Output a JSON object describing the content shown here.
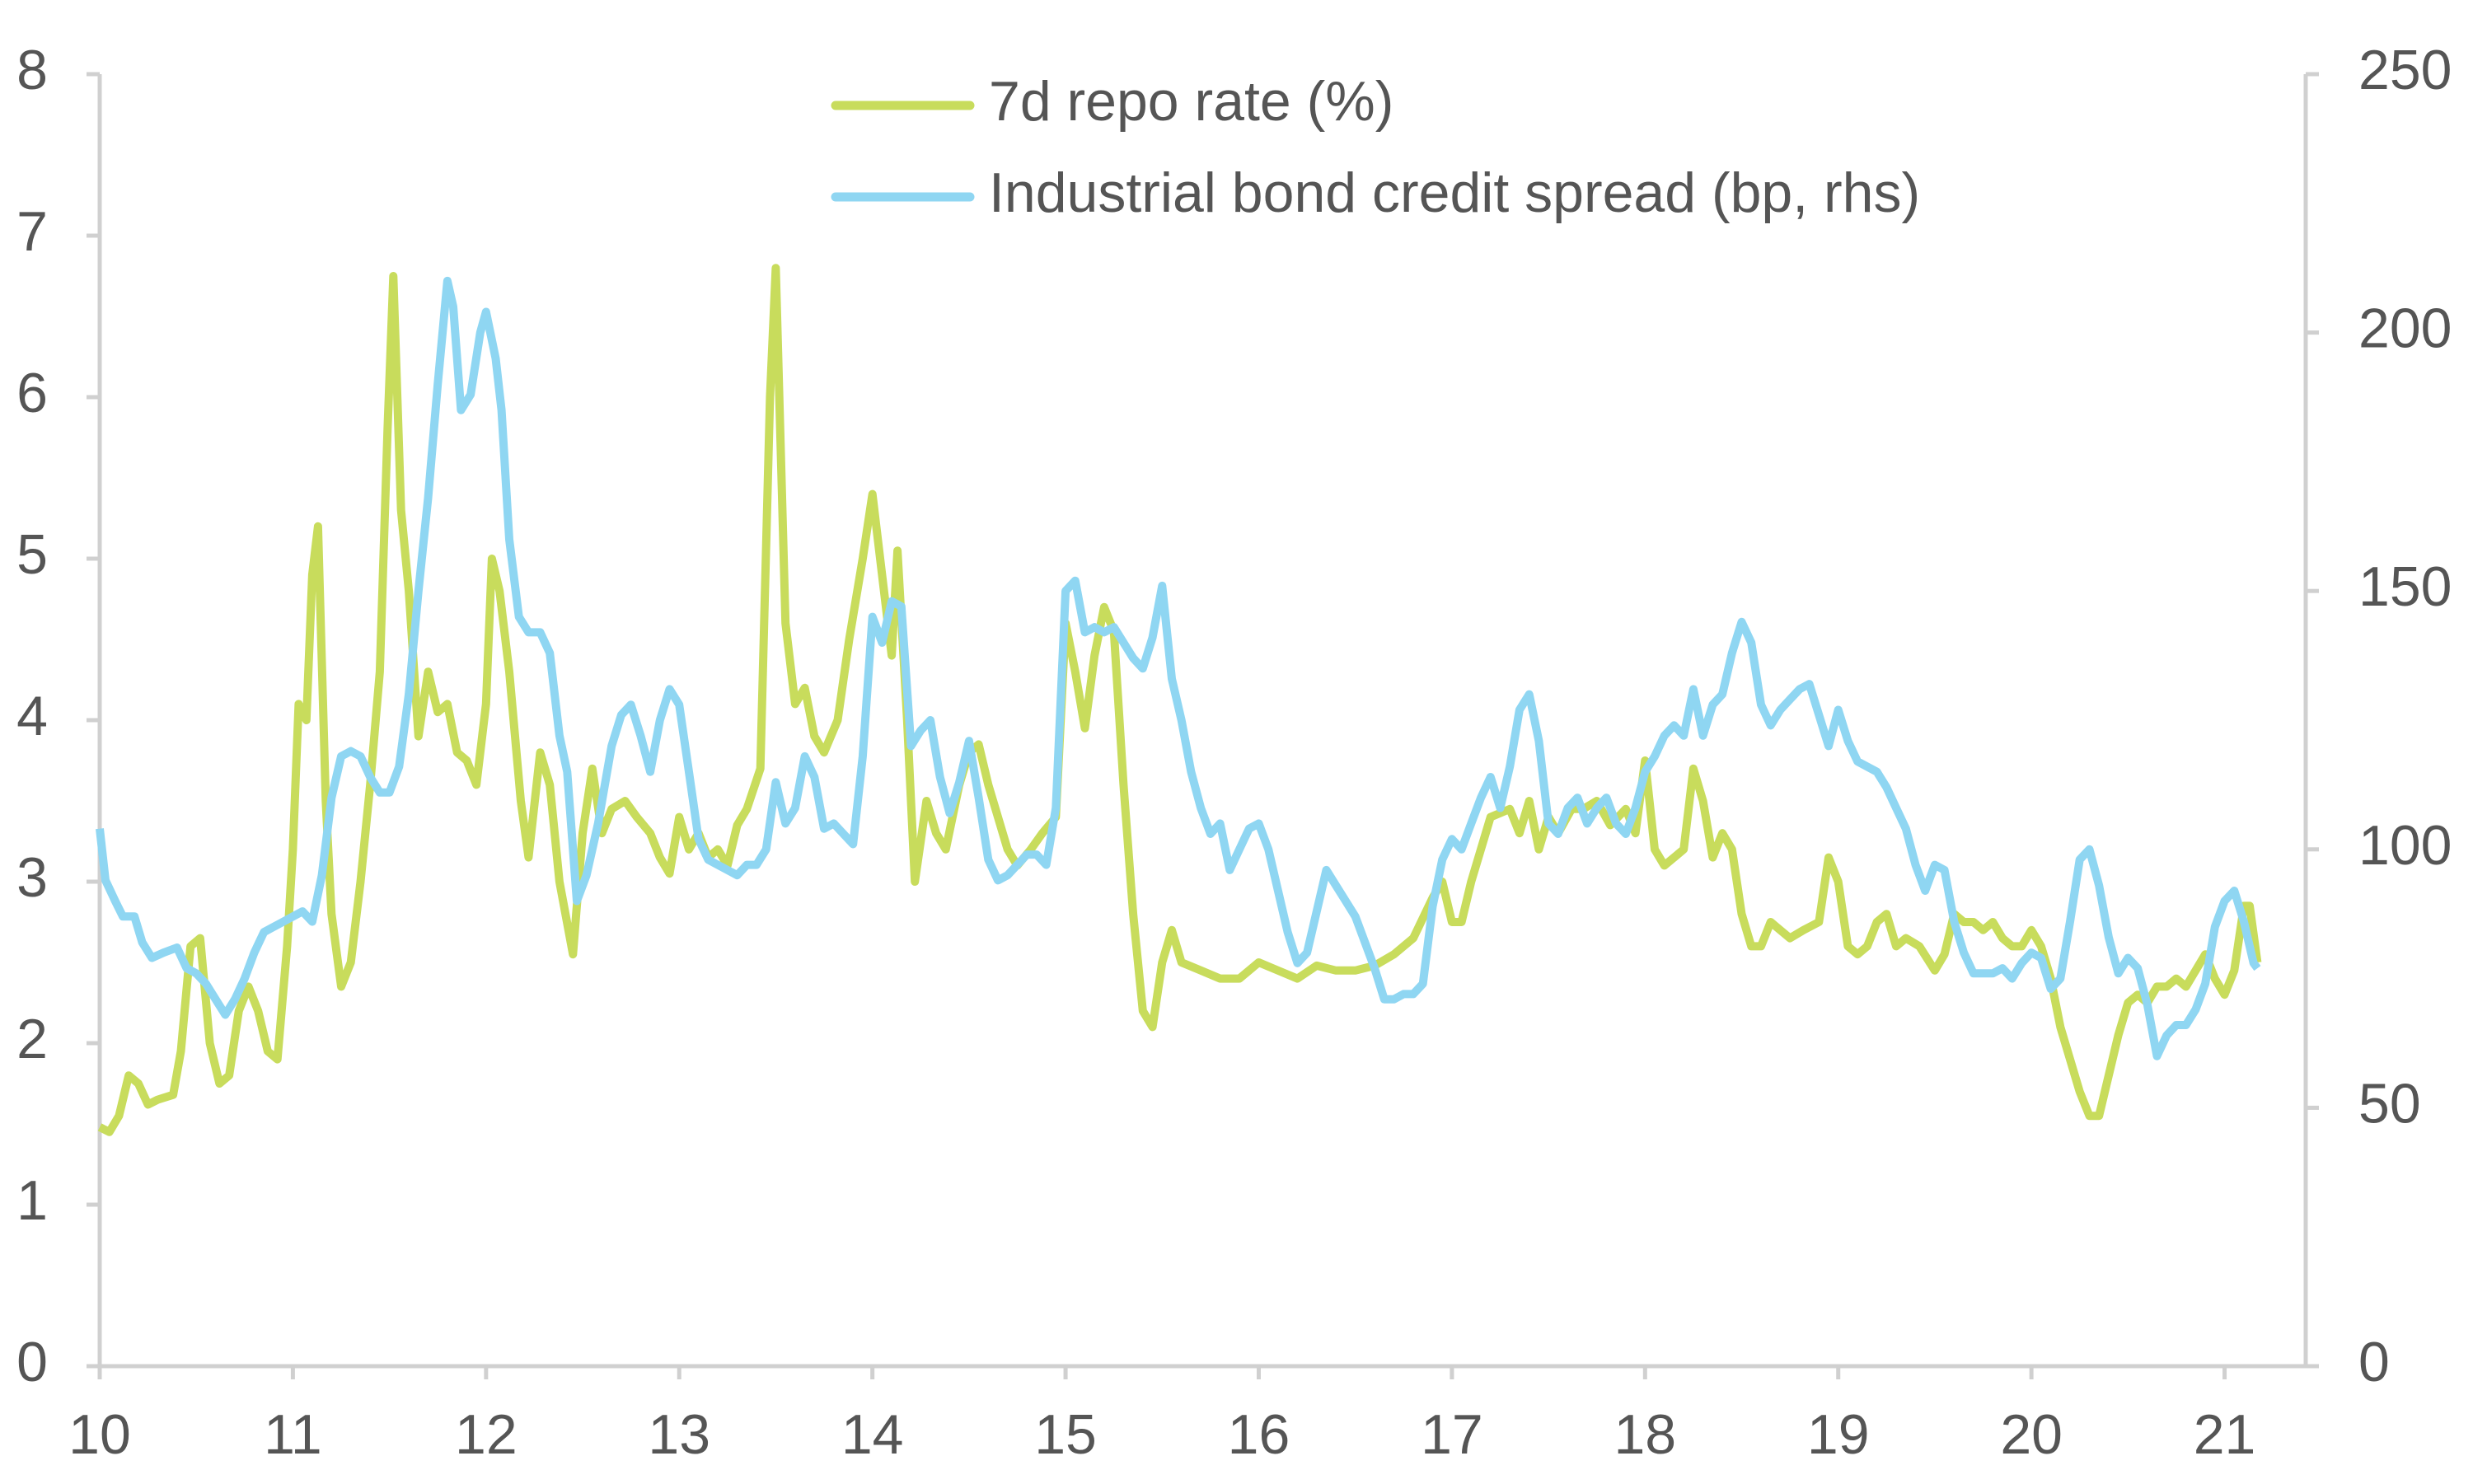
{
  "chart_data": {
    "type": "line",
    "xlim": [
      10,
      21.42
    ],
    "xticks": [
      10,
      11,
      12,
      13,
      14,
      15,
      16,
      17,
      18,
      19,
      20,
      21
    ],
    "ylim": [
      0,
      8
    ],
    "yticks": [
      0,
      1,
      2,
      3,
      4,
      5,
      6,
      7,
      8
    ],
    "y2lim": [
      0,
      250
    ],
    "y2ticks": [
      0,
      50,
      100,
      150,
      200,
      250
    ],
    "series": [
      {
        "name": "7d repo rate (%)",
        "color": "#c8dc5c",
        "x": [
          10.0,
          10.05,
          10.1,
          10.15,
          10.2,
          10.25,
          10.3,
          10.38,
          10.42,
          10.47,
          10.52,
          10.57,
          10.62,
          10.67,
          10.72,
          10.77,
          10.82,
          10.87,
          10.92,
          10.97,
          11.0,
          11.03,
          11.07,
          11.1,
          11.13,
          11.17,
          11.2,
          11.25,
          11.3,
          11.35,
          11.4,
          11.45,
          11.49,
          11.52,
          11.56,
          11.6,
          11.65,
          11.7,
          11.75,
          11.8,
          11.85,
          11.9,
          11.95,
          12.0,
          12.03,
          12.07,
          12.12,
          12.18,
          12.22,
          12.28,
          12.33,
          12.38,
          12.45,
          12.5,
          12.55,
          12.6,
          12.65,
          12.72,
          12.78,
          12.85,
          12.9,
          12.95,
          13.0,
          13.05,
          13.1,
          13.15,
          13.2,
          13.25,
          13.3,
          13.35,
          13.42,
          13.47,
          13.5,
          13.55,
          13.6,
          13.65,
          13.7,
          13.75,
          13.82,
          13.88,
          13.95,
          14.0,
          14.05,
          14.1,
          14.13,
          14.18,
          14.22,
          14.28,
          14.33,
          14.38,
          14.45,
          14.5,
          14.55,
          14.6,
          14.65,
          14.7,
          14.75,
          14.82,
          14.88,
          14.95,
          15.0,
          15.05,
          15.1,
          15.15,
          15.2,
          15.25,
          15.3,
          15.35,
          15.4,
          15.45,
          15.5,
          15.55,
          15.6,
          15.7,
          15.8,
          15.9,
          16.0,
          16.1,
          16.2,
          16.3,
          16.4,
          16.5,
          16.6,
          16.7,
          16.8,
          16.9,
          16.95,
          17.0,
          17.05,
          17.1,
          17.2,
          17.3,
          17.35,
          17.4,
          17.45,
          17.5,
          17.55,
          17.62,
          17.68,
          17.75,
          17.82,
          17.9,
          17.95,
          18.0,
          18.05,
          18.1,
          18.15,
          18.2,
          18.25,
          18.3,
          18.35,
          18.4,
          18.45,
          18.5,
          18.55,
          18.6,
          18.65,
          18.7,
          18.75,
          18.82,
          18.9,
          18.95,
          19.0,
          19.05,
          19.1,
          19.15,
          19.2,
          19.25,
          19.3,
          19.35,
          19.42,
          19.5,
          19.55,
          19.6,
          19.65,
          19.7,
          19.75,
          19.8,
          19.85,
          19.9,
          19.95,
          20.0,
          20.05,
          20.1,
          20.15,
          20.2,
          20.25,
          20.3,
          20.35,
          20.4,
          20.45,
          20.5,
          20.55,
          20.6,
          20.65,
          20.7,
          20.75,
          20.8,
          20.85,
          20.9,
          20.95,
          21.0,
          21.05,
          21.1,
          21.13,
          21.17
        ],
        "values": [
          1.48,
          1.45,
          1.55,
          1.8,
          1.75,
          1.62,
          1.65,
          1.68,
          1.95,
          2.6,
          2.65,
          2.0,
          1.75,
          1.8,
          2.2,
          2.35,
          2.2,
          1.95,
          1.9,
          2.6,
          3.2,
          4.1,
          4.0,
          4.9,
          5.2,
          3.5,
          2.8,
          2.35,
          2.5,
          3.0,
          3.6,
          4.3,
          5.8,
          6.75,
          5.3,
          4.8,
          3.9,
          4.3,
          4.05,
          4.1,
          3.8,
          3.75,
          3.6,
          4.1,
          5.0,
          4.8,
          4.3,
          3.5,
          3.15,
          3.8,
          3.6,
          3.0,
          2.55,
          3.3,
          3.7,
          3.3,
          3.45,
          3.5,
          3.4,
          3.3,
          3.15,
          3.05,
          3.4,
          3.2,
          3.3,
          3.15,
          3.2,
          3.1,
          3.35,
          3.45,
          3.7,
          6.0,
          6.8,
          4.6,
          4.1,
          4.2,
          3.9,
          3.8,
          4.0,
          4.5,
          5.0,
          5.4,
          4.9,
          4.4,
          5.05,
          4.0,
          3.0,
          3.5,
          3.3,
          3.2,
          3.6,
          3.8,
          3.85,
          3.6,
          3.4,
          3.2,
          3.1,
          3.2,
          3.3,
          3.4,
          4.6,
          4.3,
          3.95,
          4.4,
          4.7,
          4.55,
          3.6,
          2.8,
          2.2,
          2.1,
          2.5,
          2.7,
          2.5,
          2.45,
          2.4,
          2.4,
          2.5,
          2.45,
          2.4,
          2.48,
          2.45,
          2.45,
          2.48,
          2.55,
          2.65,
          2.9,
          3.0,
          2.75,
          2.75,
          3.0,
          3.4,
          3.45,
          3.3,
          3.5,
          3.2,
          3.4,
          3.3,
          3.45,
          3.45,
          3.5,
          3.35,
          3.45,
          3.3,
          3.75,
          3.2,
          3.1,
          3.15,
          3.2,
          3.7,
          3.5,
          3.15,
          3.3,
          3.2,
          2.8,
          2.6,
          2.6,
          2.75,
          2.7,
          2.65,
          2.7,
          2.75,
          3.15,
          3.0,
          2.6,
          2.55,
          2.6,
          2.75,
          2.8,
          2.6,
          2.65,
          2.6,
          2.45,
          2.55,
          2.8,
          2.75,
          2.75,
          2.7,
          2.75,
          2.65,
          2.6,
          2.6,
          2.7,
          2.6,
          2.4,
          2.1,
          1.9,
          1.7,
          1.55,
          1.55,
          1.8,
          2.05,
          2.25,
          2.3,
          2.25,
          2.35,
          2.35,
          2.4,
          2.35,
          2.45,
          2.55,
          2.4,
          2.3,
          2.45,
          2.85,
          2.85,
          2.5
        ]
      },
      {
        "name": "Industrial bond credit spread (bp, rhs)",
        "color": "#8fd6f2",
        "axis": "y2",
        "x": [
          10.0,
          10.03,
          10.08,
          10.12,
          10.18,
          10.22,
          10.27,
          10.33,
          10.4,
          10.45,
          10.5,
          10.55,
          10.6,
          10.65,
          10.7,
          10.75,
          10.8,
          10.85,
          10.9,
          10.95,
          11.0,
          11.05,
          11.1,
          11.15,
          11.2,
          11.25,
          11.3,
          11.35,
          11.4,
          11.45,
          11.5,
          11.55,
          11.6,
          11.65,
          11.7,
          11.75,
          11.8,
          11.83,
          11.87,
          11.92,
          11.97,
          12.0,
          12.05,
          12.08,
          12.12,
          12.17,
          12.22,
          12.28,
          12.33,
          12.38,
          12.42,
          12.47,
          12.52,
          12.58,
          12.65,
          12.7,
          12.75,
          12.8,
          12.85,
          12.9,
          12.95,
          13.0,
          13.05,
          13.1,
          13.15,
          13.2,
          13.25,
          13.3,
          13.35,
          13.4,
          13.45,
          13.5,
          13.55,
          13.6,
          13.65,
          13.7,
          13.75,
          13.8,
          13.85,
          13.9,
          13.95,
          14.0,
          14.05,
          14.1,
          14.15,
          14.2,
          14.25,
          14.3,
          14.35,
          14.4,
          14.45,
          14.5,
          14.55,
          14.6,
          14.65,
          14.7,
          14.75,
          14.8,
          14.85,
          14.9,
          14.95,
          15.0,
          15.05,
          15.1,
          15.15,
          15.2,
          15.25,
          15.3,
          15.35,
          15.4,
          15.45,
          15.5,
          15.55,
          15.6,
          15.65,
          15.7,
          15.75,
          15.8,
          15.85,
          15.9,
          15.95,
          16.0,
          16.05,
          16.1,
          16.15,
          16.2,
          16.25,
          16.3,
          16.35,
          16.4,
          16.45,
          16.5,
          16.55,
          16.6,
          16.65,
          16.7,
          16.75,
          16.8,
          16.85,
          16.9,
          16.95,
          17.0,
          17.05,
          17.1,
          17.15,
          17.2,
          17.25,
          17.3,
          17.35,
          17.4,
          17.45,
          17.5,
          17.55,
          17.6,
          17.65,
          17.7,
          17.75,
          17.8,
          17.85,
          17.9,
          17.95,
          18.0,
          18.05,
          18.1,
          18.15,
          18.2,
          18.25,
          18.3,
          18.35,
          18.4,
          18.45,
          18.5,
          18.55,
          18.6,
          18.65,
          18.7,
          18.75,
          18.8,
          18.85,
          18.9,
          18.95,
          19.0,
          19.05,
          19.1,
          19.15,
          19.2,
          19.25,
          19.3,
          19.35,
          19.4,
          19.45,
          19.5,
          19.55,
          19.6,
          19.65,
          19.7,
          19.75,
          19.8,
          19.85,
          19.9,
          19.95,
          20.0,
          20.05,
          20.1,
          20.15,
          20.2,
          20.25,
          20.3,
          20.35,
          20.4,
          20.45,
          20.5,
          20.55,
          20.6,
          20.65,
          20.7,
          20.75,
          20.8,
          20.85,
          20.9,
          20.95,
          21.0,
          21.05,
          21.1,
          21.15,
          21.17
        ],
        "values": [
          104,
          94,
          90,
          87,
          87,
          82,
          79,
          80,
          81,
          77,
          76,
          74,
          71,
          68,
          71,
          75,
          80,
          84,
          85,
          86,
          87,
          88,
          86,
          95,
          110,
          118,
          119,
          118,
          114,
          111,
          111,
          116,
          130,
          150,
          168,
          190,
          210,
          205,
          185,
          188,
          200,
          204,
          195,
          185,
          160,
          145,
          142,
          142,
          138,
          122,
          115,
          90,
          95,
          105,
          120,
          126,
          128,
          122,
          115,
          125,
          131,
          128,
          115,
          102,
          98,
          97,
          96,
          95,
          97,
          97,
          100,
          113,
          105,
          108,
          118,
          114,
          104,
          105,
          103,
          101,
          118,
          145,
          140,
          148,
          147,
          120,
          123,
          125,
          114,
          107,
          113,
          121,
          110,
          98,
          94,
          95,
          97,
          99,
          99,
          97,
          108,
          150,
          152,
          142,
          143,
          142,
          143,
          140,
          137,
          135,
          141,
          151,
          133,
          125,
          115,
          108,
          103,
          105,
          96,
          100,
          104,
          105,
          100,
          92,
          84,
          78,
          80,
          88,
          96,
          93,
          90,
          87,
          82,
          77,
          71,
          71,
          72,
          72,
          74,
          89,
          98,
          102,
          100,
          105,
          110,
          114,
          108,
          116,
          127,
          130,
          121,
          105,
          103,
          108,
          110,
          105,
          108,
          110,
          105,
          103,
          108,
          115,
          118,
          122,
          124,
          122,
          131,
          122,
          128,
          130,
          138,
          144,
          140,
          128,
          124,
          127,
          129,
          131,
          132,
          126,
          120,
          127,
          121,
          117,
          116,
          115,
          112,
          108,
          104,
          97,
          92,
          97,
          96,
          86,
          80,
          76,
          76,
          76,
          77,
          75,
          78,
          80,
          79,
          73,
          75,
          86,
          98,
          100,
          93,
          83,
          76,
          79,
          77,
          70,
          60,
          64,
          66,
          66,
          69,
          74,
          85,
          90,
          92,
          86,
          78,
          77
        ]
      }
    ]
  }
}
